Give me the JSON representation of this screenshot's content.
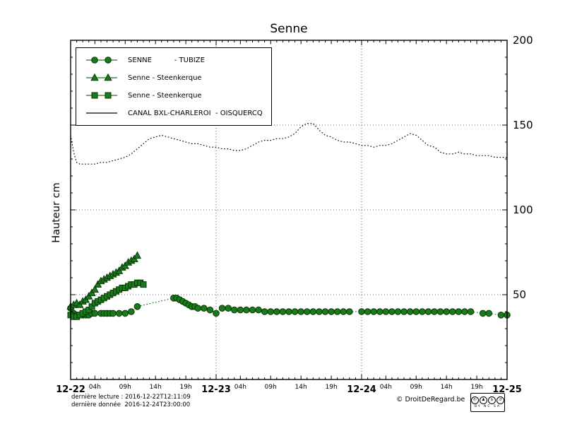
{
  "title": "Senne",
  "ylabel": "Hauteur cm",
  "legend": {
    "items": [
      {
        "label": "SENNE          - TUBIZE"
      },
      {
        "label": "Senne - Steenkerque"
      },
      {
        "label": "Senne - Steenkerque"
      },
      {
        "label": "CANAL BXL-CHARLEROI  - OISQUERCQ"
      }
    ]
  },
  "footer": {
    "last_reading": "dernière lecture : 2016-12-22T12:11:09",
    "last_data": "dernière donnée  2016-12-24T23:00:00",
    "copyright": "© DroitDeRegard.be"
  },
  "license": {
    "icons": [
      {
        "name": "cc",
        "glyph": "©"
      },
      {
        "name": "by",
        "glyph": "♟"
      },
      {
        "name": "nc",
        "glyph": "$"
      },
      {
        "name": "sa",
        "glyph": "↺"
      }
    ],
    "label": "BY NC SA"
  },
  "chart_data": {
    "type": "line",
    "title": "Senne",
    "ylabel": "Hauteur cm",
    "ylim": [
      0,
      200
    ],
    "yticks_labeled": [
      50,
      100,
      150,
      200
    ],
    "xlim_hours": [
      0,
      72
    ],
    "x_day_labels": [
      "12-22",
      "12-23",
      "12-24",
      "12-25"
    ],
    "x_hour_labels": [
      "04h",
      "09h",
      "14h",
      "19h"
    ],
    "x_hour_offsets": [
      4,
      9,
      14,
      19
    ],
    "grid_y": [
      50,
      100,
      150
    ],
    "grid_x_hours": [
      24,
      48
    ],
    "legend_position": "upper-left",
    "series": [
      {
        "name": "SENNE - TUBIZE",
        "slug": "senne-tubize",
        "marker": "circle",
        "line": "dotted",
        "color": "#1b7a1b",
        "points": [
          [
            0,
            42
          ],
          [
            0.5,
            39
          ],
          [
            1,
            38
          ],
          [
            1.5,
            38
          ],
          [
            2,
            38
          ],
          [
            2.5,
            38
          ],
          [
            3,
            38
          ],
          [
            3.5,
            39
          ],
          [
            4,
            39
          ],
          [
            5,
            39
          ],
          [
            5.5,
            39
          ],
          [
            6,
            39
          ],
          [
            6.5,
            39
          ],
          [
            7,
            39
          ],
          [
            8,
            39
          ],
          [
            9,
            39
          ],
          [
            10,
            40
          ],
          [
            11,
            43
          ],
          [
            17,
            48
          ],
          [
            17.5,
            48
          ],
          [
            18,
            47
          ],
          [
            18.5,
            46
          ],
          [
            19,
            45
          ],
          [
            19.5,
            44
          ],
          [
            20,
            43
          ],
          [
            20.5,
            43
          ],
          [
            21,
            42
          ],
          [
            22,
            42
          ],
          [
            23,
            41
          ],
          [
            24,
            39
          ],
          [
            25,
            42
          ],
          [
            26,
            42
          ],
          [
            27,
            41
          ],
          [
            28,
            41
          ],
          [
            29,
            41
          ],
          [
            30,
            41
          ],
          [
            31,
            41
          ],
          [
            32,
            40
          ],
          [
            33,
            40
          ],
          [
            34,
            40
          ],
          [
            35,
            40
          ],
          [
            36,
            40
          ],
          [
            37,
            40
          ],
          [
            38,
            40
          ],
          [
            39,
            40
          ],
          [
            40,
            40
          ],
          [
            41,
            40
          ],
          [
            42,
            40
          ],
          [
            43,
            40
          ],
          [
            44,
            40
          ],
          [
            45,
            40
          ],
          [
            46,
            40
          ],
          [
            48,
            40
          ],
          [
            49,
            40
          ],
          [
            50,
            40
          ],
          [
            51,
            40
          ],
          [
            52,
            40
          ],
          [
            53,
            40
          ],
          [
            54,
            40
          ],
          [
            55,
            40
          ],
          [
            56,
            40
          ],
          [
            57,
            40
          ],
          [
            58,
            40
          ],
          [
            59,
            40
          ],
          [
            60,
            40
          ],
          [
            61,
            40
          ],
          [
            62,
            40
          ],
          [
            63,
            40
          ],
          [
            64,
            40
          ],
          [
            65,
            40
          ],
          [
            66,
            40
          ],
          [
            68,
            39
          ],
          [
            69,
            39
          ],
          [
            71,
            38
          ],
          [
            72,
            38
          ]
        ]
      },
      {
        "name": "Senne - Steenkerque",
        "slug": "senne-steenkerque-triangle",
        "marker": "triangle",
        "line": "solid",
        "color": "#1b7a1b",
        "points": [
          [
            0,
            43
          ],
          [
            0.5,
            44
          ],
          [
            1,
            45
          ],
          [
            1.5,
            44
          ],
          [
            2,
            46
          ],
          [
            2.5,
            47
          ],
          [
            3,
            49
          ],
          [
            3.5,
            51
          ],
          [
            4,
            53
          ],
          [
            4.5,
            56
          ],
          [
            5,
            58
          ],
          [
            5.5,
            59
          ],
          [
            6,
            60
          ],
          [
            6.5,
            61
          ],
          [
            7,
            62
          ],
          [
            7.5,
            63
          ],
          [
            8,
            64
          ],
          [
            8.5,
            66
          ],
          [
            9,
            67
          ],
          [
            9.5,
            69
          ],
          [
            10,
            70
          ],
          [
            10.5,
            71
          ],
          [
            11,
            73
          ]
        ]
      },
      {
        "name": "Senne - Steenkerque",
        "slug": "senne-steenkerque-square",
        "marker": "square",
        "line": "solid",
        "color": "#1b7a1b",
        "points": [
          [
            0,
            38
          ],
          [
            0.5,
            37
          ],
          [
            1,
            37
          ],
          [
            1.5,
            38
          ],
          [
            2,
            39
          ],
          [
            2.5,
            40
          ],
          [
            3,
            41
          ],
          [
            3.5,
            43
          ],
          [
            4,
            45
          ],
          [
            4.5,
            46
          ],
          [
            5,
            47
          ],
          [
            5.5,
            48
          ],
          [
            6,
            49
          ],
          [
            6.5,
            50
          ],
          [
            7,
            51
          ],
          [
            7.5,
            52
          ],
          [
            8,
            53
          ],
          [
            8.5,
            54
          ],
          [
            9,
            54
          ],
          [
            9.5,
            55
          ],
          [
            10,
            56
          ],
          [
            10.5,
            56
          ],
          [
            11,
            57
          ],
          [
            11.5,
            57
          ],
          [
            12,
            56
          ]
        ]
      },
      {
        "name": "CANAL BXL-CHARLEROI - OISQUERCQ",
        "slug": "canal-bxl-charleroi-oisquercq",
        "marker": "none",
        "line": "dotted",
        "color": "#000000",
        "points": [
          [
            0,
            144
          ],
          [
            0.5,
            134
          ],
          [
            1,
            128
          ],
          [
            1.5,
            127
          ],
          [
            2,
            127
          ],
          [
            2.5,
            127
          ],
          [
            3,
            127
          ],
          [
            4,
            127
          ],
          [
            5,
            128
          ],
          [
            6,
            128
          ],
          [
            7,
            129
          ],
          [
            8,
            130
          ],
          [
            9,
            131
          ],
          [
            10,
            133
          ],
          [
            11,
            136
          ],
          [
            12,
            139
          ],
          [
            13,
            142
          ],
          [
            14,
            143
          ],
          [
            15,
            144
          ],
          [
            16,
            143
          ],
          [
            17,
            142
          ],
          [
            18,
            141
          ],
          [
            19,
            140
          ],
          [
            20,
            139
          ],
          [
            21,
            139
          ],
          [
            22,
            138
          ],
          [
            23,
            137
          ],
          [
            24,
            137
          ],
          [
            25,
            136
          ],
          [
            26,
            136
          ],
          [
            27,
            135
          ],
          [
            28,
            135
          ],
          [
            29,
            136
          ],
          [
            30,
            138
          ],
          [
            31,
            140
          ],
          [
            32,
            141
          ],
          [
            33,
            141
          ],
          [
            34,
            142
          ],
          [
            35,
            142
          ],
          [
            36,
            143
          ],
          [
            37,
            145
          ],
          [
            38,
            149
          ],
          [
            39,
            151
          ],
          [
            40,
            151
          ],
          [
            41,
            147
          ],
          [
            42,
            144
          ],
          [
            43,
            143
          ],
          [
            44,
            141
          ],
          [
            45,
            140
          ],
          [
            46,
            140
          ],
          [
            47,
            139
          ],
          [
            48,
            138
          ],
          [
            49,
            138
          ],
          [
            50,
            137
          ],
          [
            51,
            138
          ],
          [
            52,
            138
          ],
          [
            53,
            139
          ],
          [
            54,
            141
          ],
          [
            55,
            143
          ],
          [
            56,
            145
          ],
          [
            57,
            144
          ],
          [
            58,
            141
          ],
          [
            59,
            138
          ],
          [
            60,
            137
          ],
          [
            61,
            134
          ],
          [
            62,
            133
          ],
          [
            63,
            133
          ],
          [
            64,
            134
          ],
          [
            65,
            133
          ],
          [
            66,
            133
          ],
          [
            67,
            132
          ],
          [
            68,
            132
          ],
          [
            69,
            132
          ],
          [
            70,
            131
          ],
          [
            71,
            131
          ],
          [
            72,
            131
          ]
        ]
      }
    ]
  }
}
